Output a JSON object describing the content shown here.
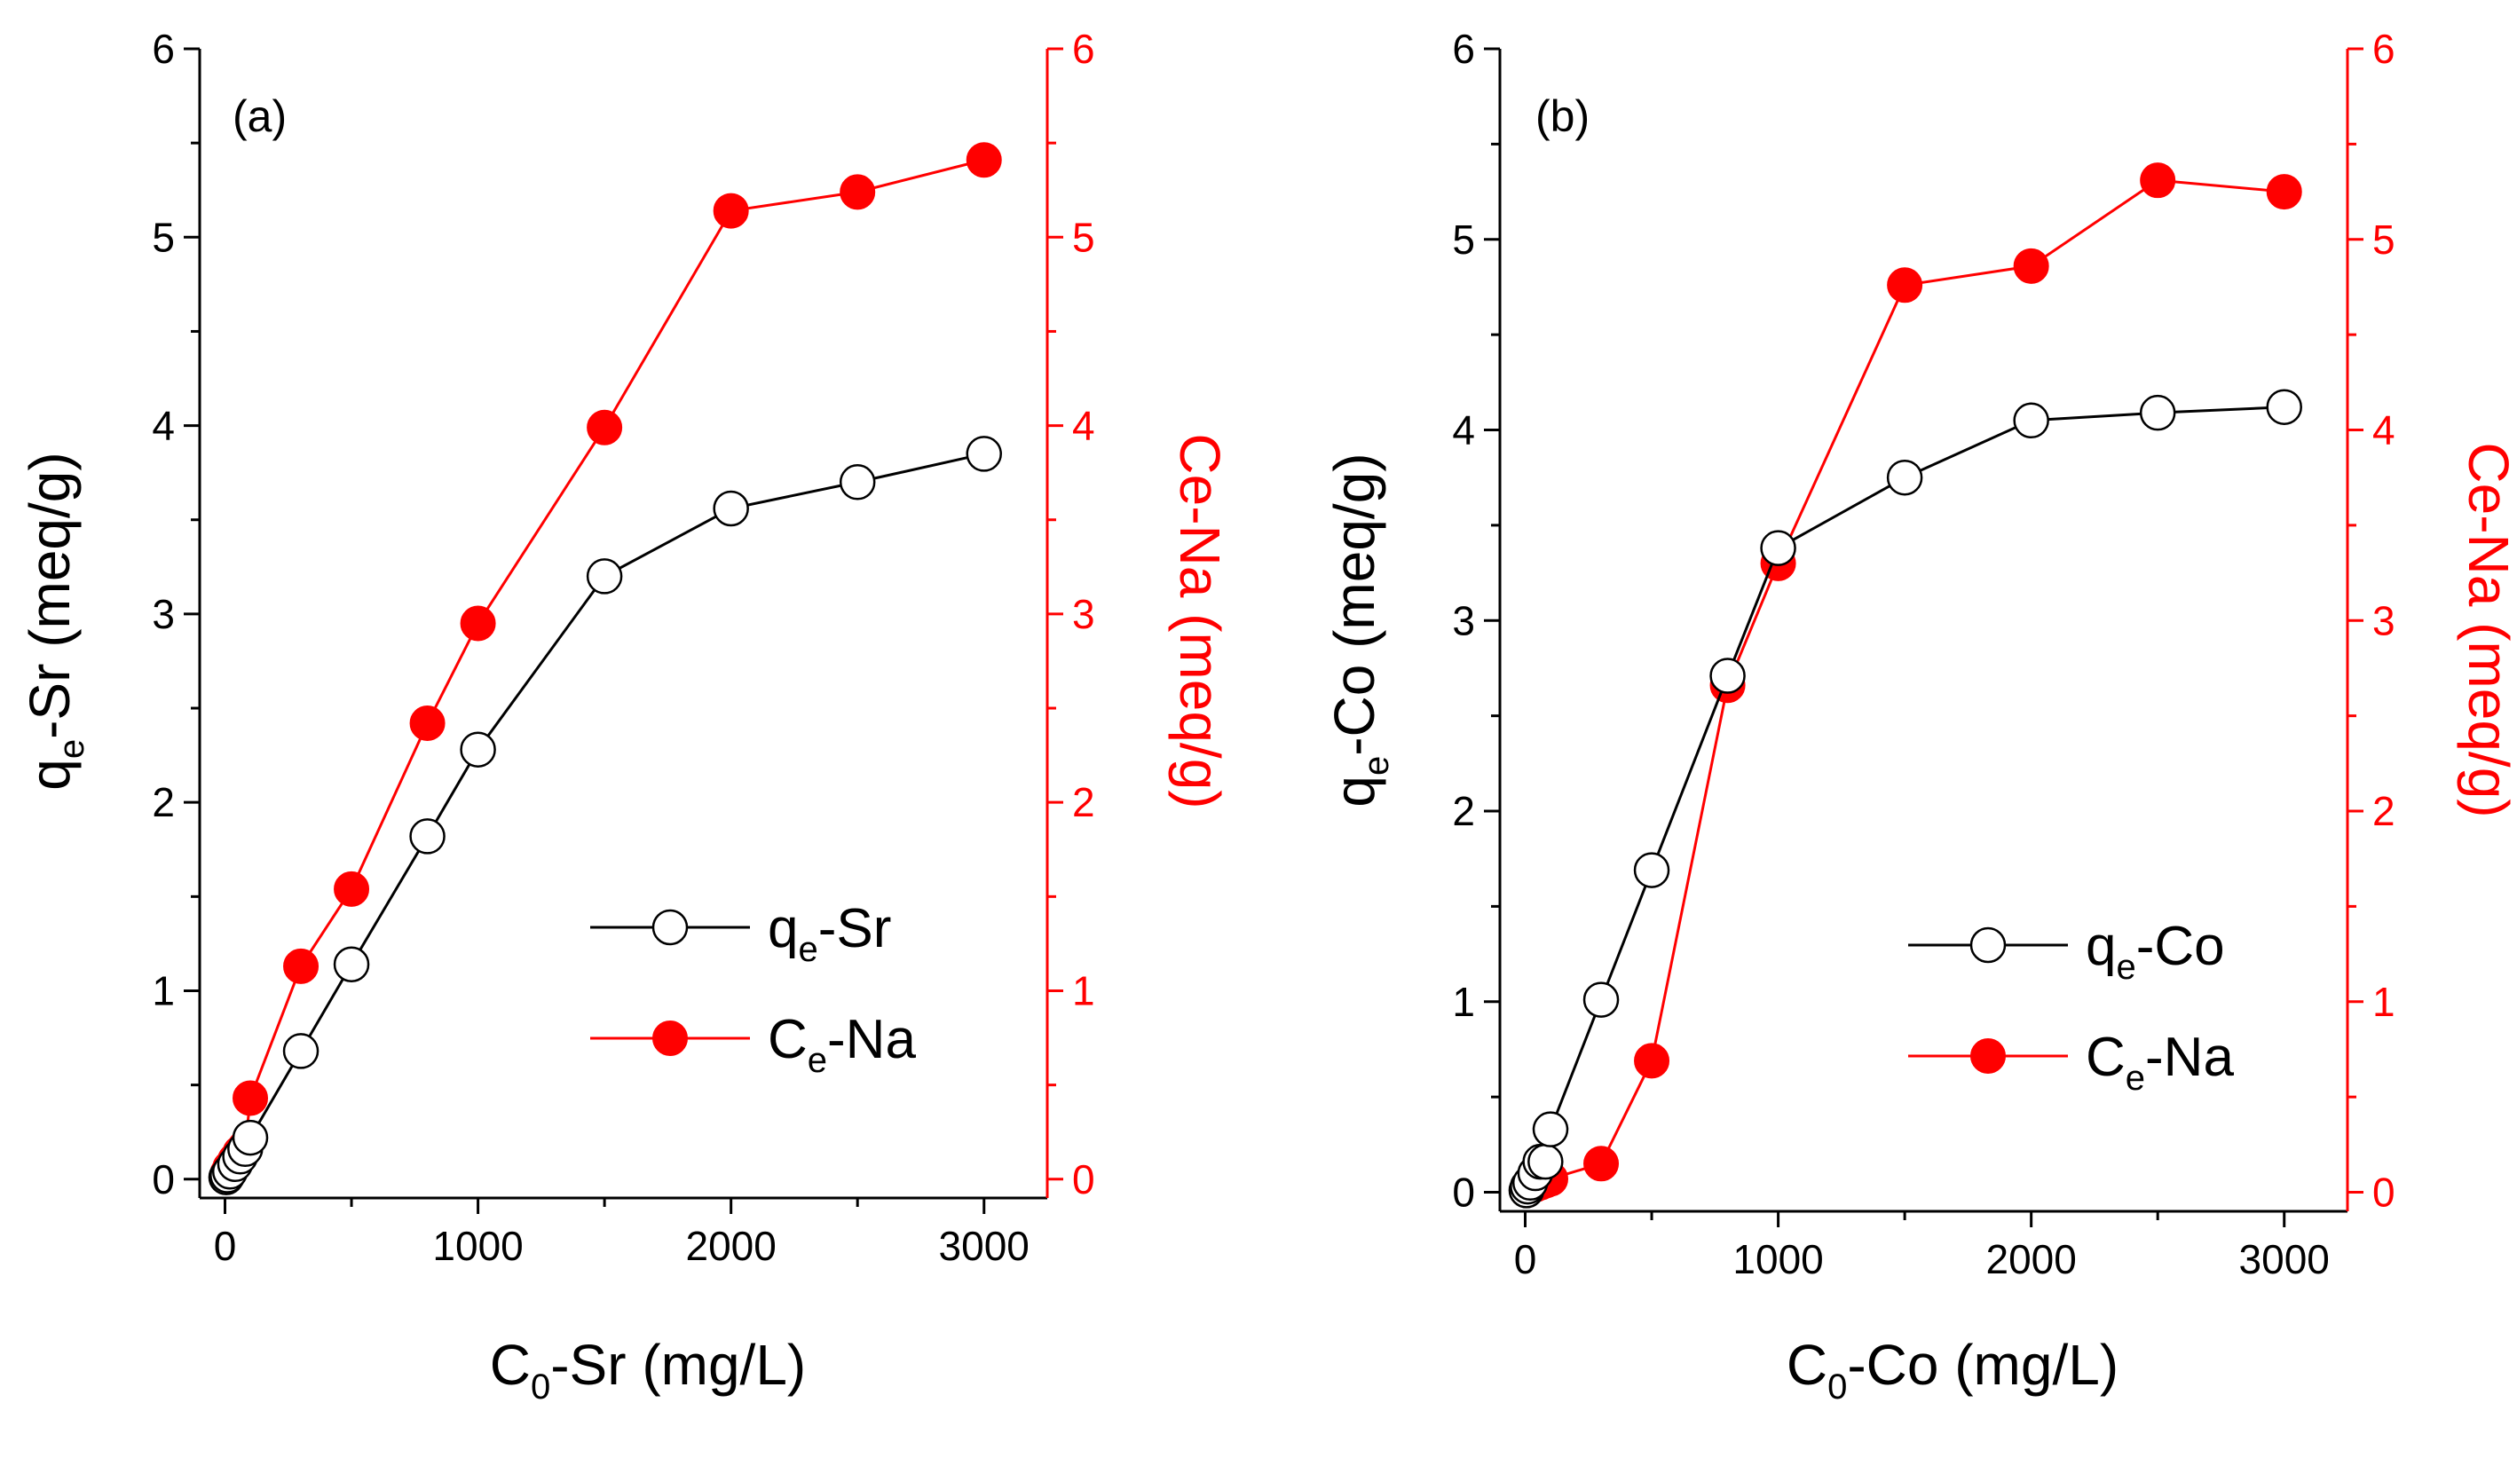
{
  "chart_data": [
    {
      "type": "line",
      "panel_label": "(a)",
      "xlabel": {
        "main": "C",
        "sub": "0",
        "rest": "-Sr (mg/L)"
      },
      "ylabel_left": {
        "main": "q",
        "sub": "e",
        "rest": "-Sr (meq/g)"
      },
      "ylabel_right": "Ce-Na (meq/g)",
      "xlim": [
        -100,
        3250
      ],
      "ylim_left": [
        -0.1,
        6
      ],
      "ylim_right": [
        -0.1,
        6
      ],
      "x_ticks": [
        0,
        1000,
        2000,
        3000
      ],
      "y_ticks_left": [
        0,
        1,
        2,
        3,
        4,
        5,
        6
      ],
      "y_ticks_right": [
        0,
        1,
        2,
        3,
        4,
        5,
        6
      ],
      "legend_position": "lower-right",
      "series": [
        {
          "name": "q_e-Sr",
          "legend": {
            "main": "q",
            "sub": "e",
            "rest": "-Sr"
          },
          "axis": "left",
          "marker": "open-circle",
          "color": "#000000",
          "x": [
            5,
            10,
            20,
            40,
            60,
            80,
            100,
            300,
            500,
            800,
            1000,
            1500,
            2000,
            2500,
            3000
          ],
          "y": [
            0.01,
            0.02,
            0.04,
            0.08,
            0.12,
            0.16,
            0.22,
            0.68,
            1.14,
            1.82,
            2.28,
            3.2,
            3.56,
            3.7,
            3.85
          ]
        },
        {
          "name": "C_e-Na",
          "legend": {
            "main": "C",
            "sub": "e",
            "rest": "-Na"
          },
          "axis": "right",
          "marker": "filled-circle",
          "color": "#ff0000",
          "x": [
            5,
            10,
            20,
            40,
            60,
            80,
            100,
            300,
            500,
            800,
            1000,
            1500,
            2000,
            2500,
            3000
          ],
          "y": [
            0.01,
            0.03,
            0.06,
            0.1,
            0.14,
            0.17,
            0.43,
            1.13,
            1.54,
            2.42,
            2.95,
            3.99,
            5.14,
            5.24,
            5.41
          ]
        }
      ]
    },
    {
      "type": "line",
      "panel_label": "(b)",
      "xlabel": {
        "main": "C",
        "sub": "0",
        "rest": "-Co (mg/L)"
      },
      "ylabel_left": {
        "main": "q",
        "sub": "e",
        "rest": "-Co (meq/g)"
      },
      "ylabel_right": "Ce-Na (meq/g)",
      "xlim": [
        -100,
        3250
      ],
      "ylim_left": [
        -0.1,
        6
      ],
      "ylim_right": [
        -0.1,
        6
      ],
      "x_ticks": [
        0,
        1000,
        2000,
        3000
      ],
      "y_ticks_left": [
        0,
        1,
        2,
        3,
        4,
        5,
        6
      ],
      "y_ticks_right": [
        0,
        1,
        2,
        3,
        4,
        5,
        6
      ],
      "legend_position": "lower-right",
      "series": [
        {
          "name": "q_e-Co",
          "legend": {
            "main": "q",
            "sub": "e",
            "rest": "-Co"
          },
          "axis": "left",
          "marker": "open-circle",
          "color": "#000000",
          "x": [
            5,
            10,
            20,
            40,
            60,
            80,
            100,
            300,
            500,
            800,
            1000,
            1500,
            2000,
            2500,
            3000
          ],
          "y": [
            0.01,
            0.03,
            0.05,
            0.1,
            0.16,
            0.16,
            0.33,
            1.01,
            1.69,
            2.71,
            3.38,
            3.75,
            4.05,
            4.09,
            4.12
          ]
        },
        {
          "name": "C_e-Na",
          "legend": {
            "main": "C",
            "sub": "e",
            "rest": "-Na"
          },
          "axis": "right",
          "marker": "filled-circle",
          "color": "#ff0000",
          "x": [
            5,
            10,
            20,
            40,
            60,
            80,
            100,
            300,
            500,
            800,
            1000,
            1500,
            2000,
            2500,
            3000
          ],
          "y": [
            0.01,
            0.02,
            0.03,
            0.04,
            0.05,
            0.06,
            0.07,
            0.15,
            0.69,
            2.66,
            3.3,
            4.76,
            4.86,
            5.31,
            5.25
          ]
        }
      ]
    }
  ]
}
